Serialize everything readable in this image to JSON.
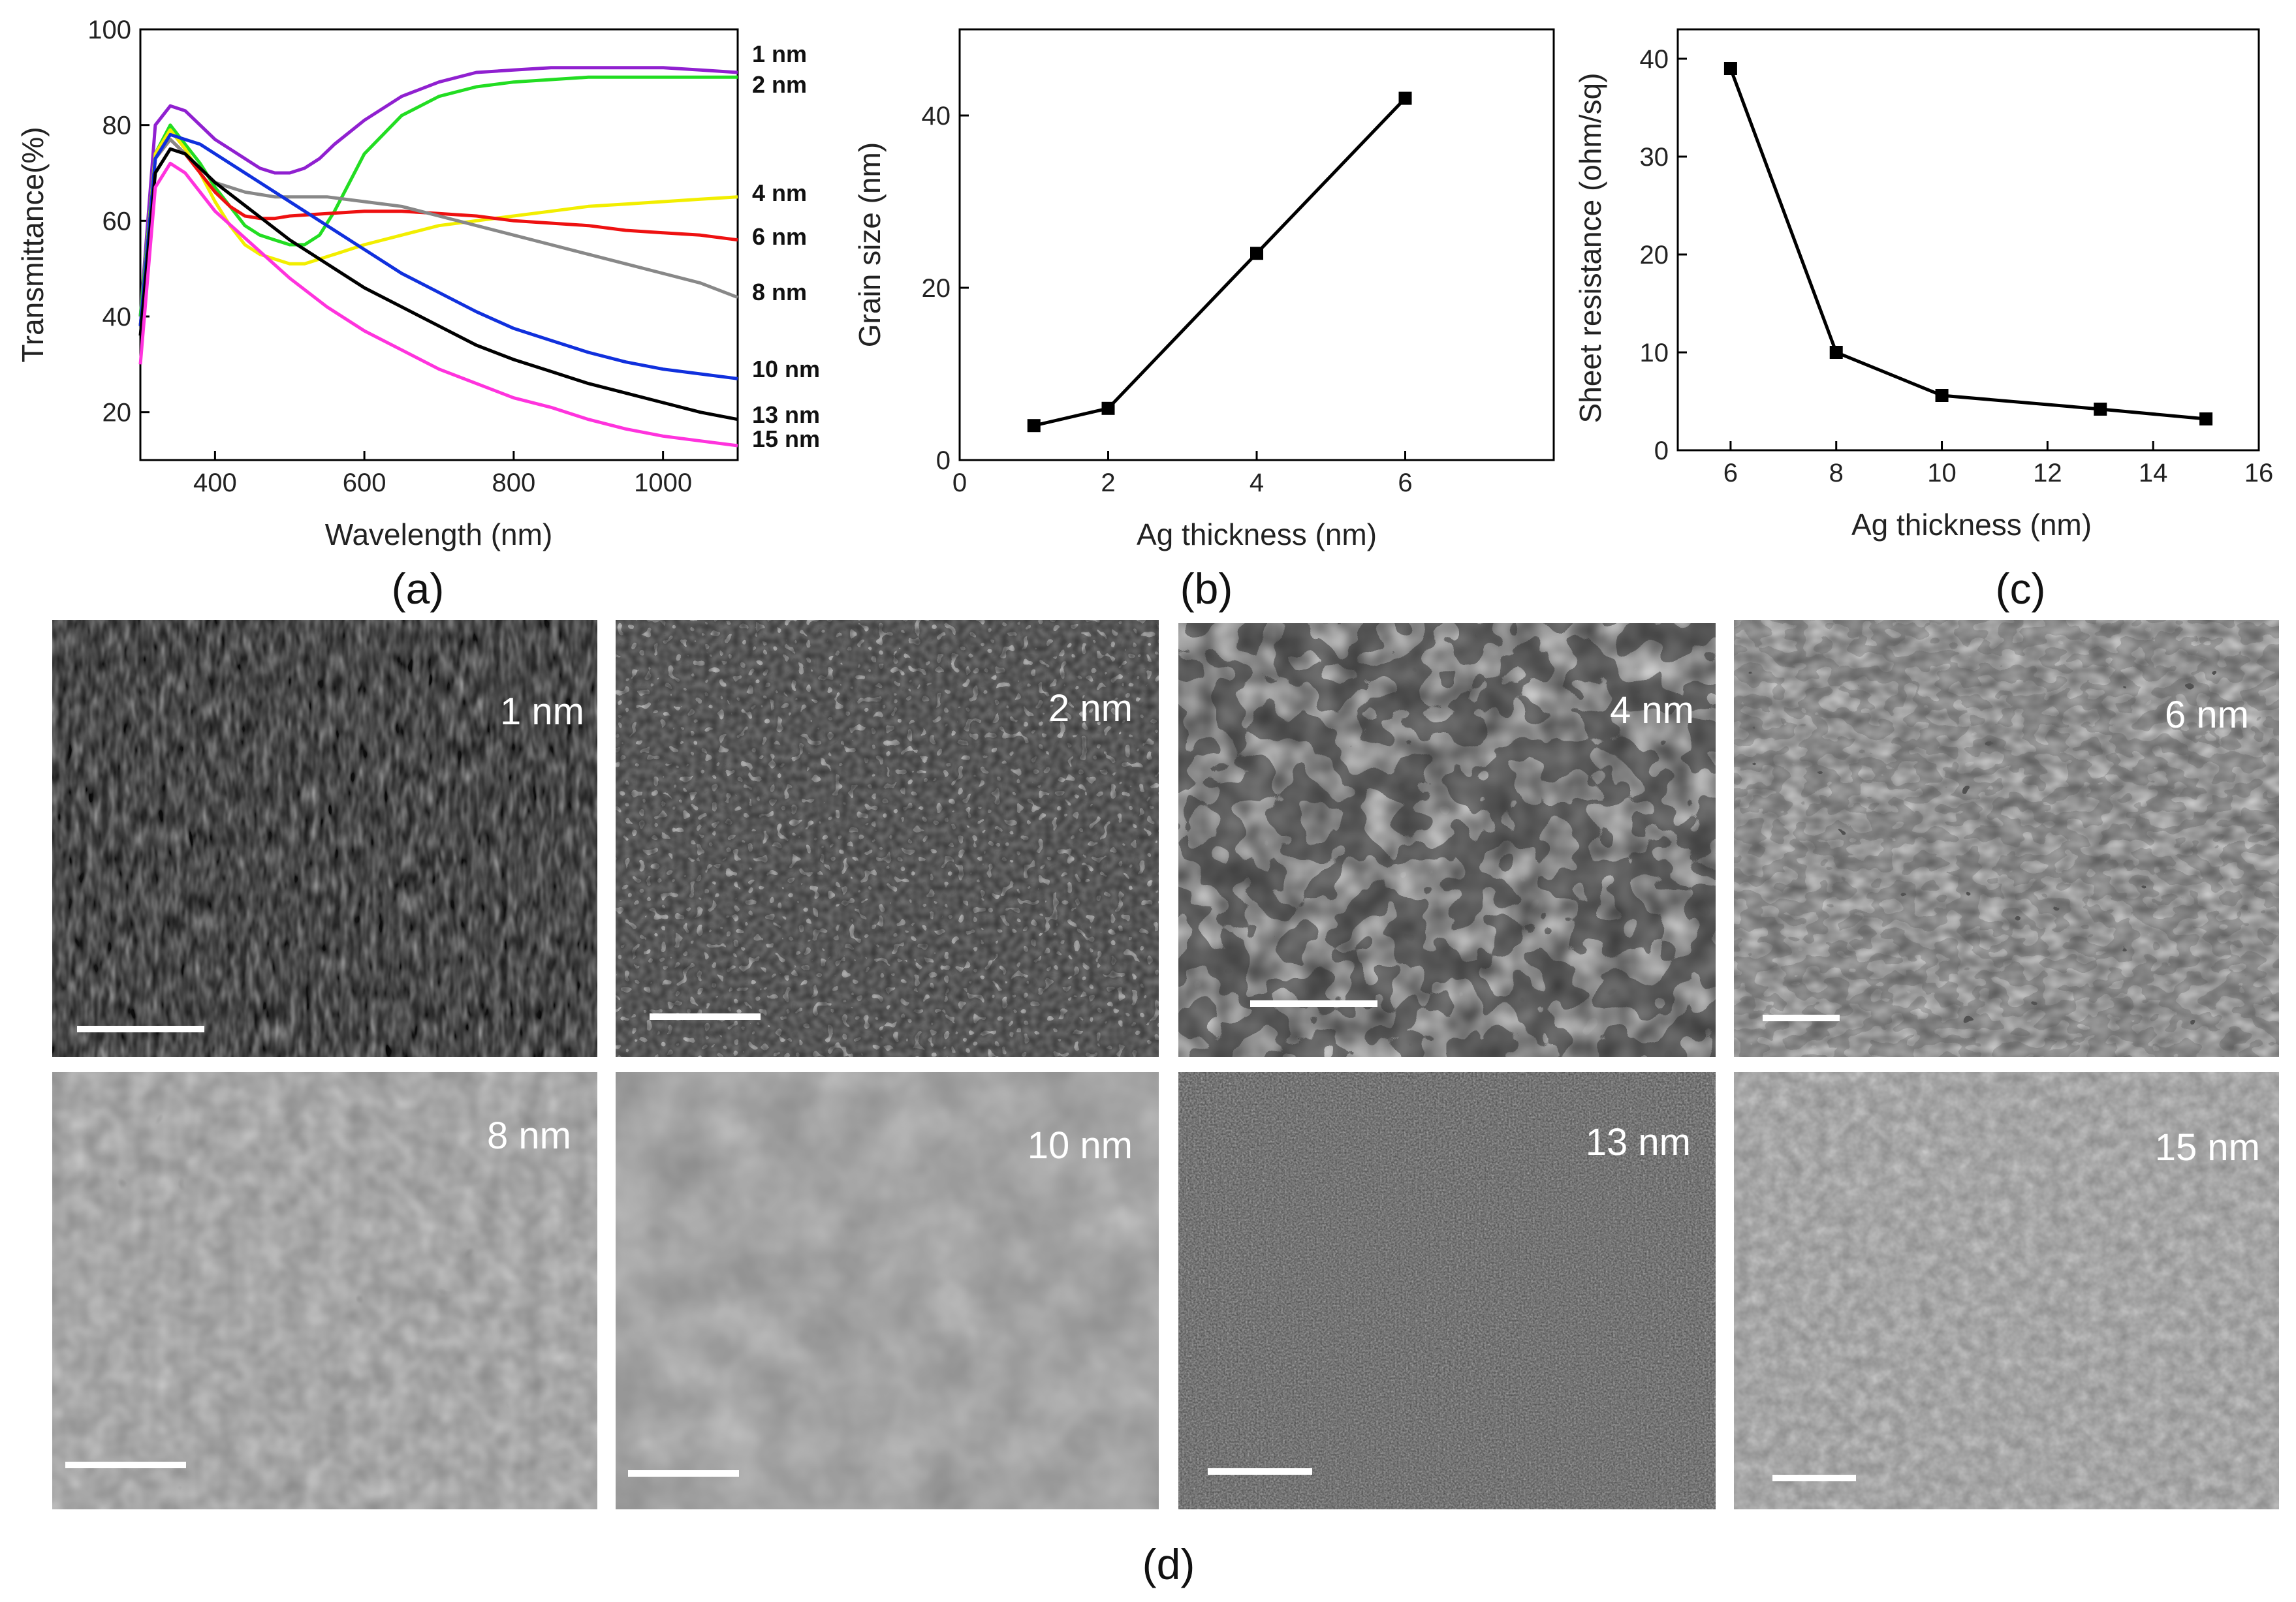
{
  "chart_data": [
    {
      "panel": "(a)",
      "type": "line",
      "xlabel": "Wavelength (nm)",
      "ylabel": "Transmittance(%)",
      "xlim": [
        300,
        1100
      ],
      "ylim": [
        10,
        100
      ],
      "xticks": [
        400,
        600,
        800,
        1000
      ],
      "yticks": [
        20,
        40,
        60,
        80,
        100
      ],
      "legend_position": "right",
      "series": [
        {
          "name": "1 nm",
          "color": "#9020d0",
          "x": [
            300,
            320,
            340,
            360,
            380,
            400,
            420,
            440,
            460,
            480,
            500,
            520,
            540,
            560,
            600,
            650,
            700,
            750,
            800,
            850,
            900,
            950,
            1000,
            1050,
            1100
          ],
          "y": [
            40,
            80,
            84,
            83,
            80,
            77,
            75,
            73,
            71,
            70,
            70,
            71,
            73,
            76,
            81,
            86,
            89,
            91,
            91.5,
            92,
            92,
            92,
            92,
            91.5,
            91
          ]
        },
        {
          "name": "2 nm",
          "color": "#22dd22",
          "x": [
            300,
            320,
            340,
            360,
            380,
            400,
            420,
            440,
            460,
            480,
            500,
            520,
            540,
            560,
            580,
            600,
            650,
            700,
            750,
            800,
            850,
            900,
            950,
            1000,
            1050,
            1100
          ],
          "y": [
            40,
            74,
            80,
            76,
            72,
            67,
            63,
            59,
            57,
            56,
            55,
            55,
            57,
            62,
            68,
            74,
            82,
            86,
            88,
            89,
            89.5,
            90,
            90,
            90,
            90,
            90
          ]
        },
        {
          "name": "4 nm",
          "color": "#f2ee00",
          "x": [
            300,
            320,
            340,
            360,
            380,
            400,
            420,
            440,
            460,
            480,
            500,
            520,
            540,
            560,
            600,
            650,
            700,
            750,
            800,
            850,
            900,
            950,
            1000,
            1050,
            1100
          ],
          "y": [
            38,
            74,
            79,
            75,
            70,
            64,
            59,
            55,
            53,
            52,
            51,
            51,
            52,
            53,
            55,
            57,
            59,
            60,
            61,
            62,
            63,
            63.5,
            64,
            64.5,
            65
          ]
        },
        {
          "name": "6 nm",
          "color": "#ee1111",
          "x": [
            300,
            320,
            340,
            360,
            380,
            400,
            420,
            440,
            460,
            480,
            500,
            550,
            600,
            650,
            700,
            750,
            800,
            850,
            900,
            950,
            1000,
            1050,
            1100
          ],
          "y": [
            38,
            73,
            77,
            74,
            70,
            66,
            63,
            61,
            60.5,
            60.5,
            61,
            61.5,
            62,
            62,
            61.5,
            61,
            60,
            59.5,
            59,
            58,
            57.5,
            57,
            56
          ]
        },
        {
          "name": "8 nm",
          "color": "#888888",
          "x": [
            300,
            320,
            340,
            360,
            380,
            400,
            420,
            440,
            460,
            480,
            500,
            550,
            600,
            650,
            700,
            750,
            800,
            850,
            900,
            950,
            1000,
            1050,
            1100
          ],
          "y": [
            38,
            73,
            77,
            74,
            71,
            68,
            67,
            66,
            65.5,
            65,
            65,
            65,
            64,
            63,
            61,
            59,
            57,
            55,
            53,
            51,
            49,
            47,
            44
          ]
        },
        {
          "name": "10 nm",
          "color": "#1030dd",
          "x": [
            300,
            320,
            340,
            360,
            380,
            400,
            450,
            500,
            550,
            600,
            650,
            700,
            750,
            800,
            850,
            900,
            950,
            1000,
            1050,
            1100
          ],
          "y": [
            38,
            73,
            78,
            77,
            76,
            74,
            69,
            64,
            59,
            54,
            49,
            45,
            41,
            37.5,
            35,
            32.5,
            30.5,
            29,
            28,
            27
          ]
        },
        {
          "name": "13 nm",
          "color": "#000000",
          "x": [
            300,
            320,
            340,
            360,
            380,
            400,
            450,
            500,
            550,
            600,
            650,
            700,
            750,
            800,
            850,
            900,
            950,
            1000,
            1050,
            1100
          ],
          "y": [
            36,
            70,
            75,
            74,
            71,
            68,
            62,
            56,
            51,
            46,
            42,
            38,
            34,
            31,
            28.5,
            26,
            24,
            22,
            20,
            18.5
          ]
        },
        {
          "name": "15 nm",
          "color": "#ff33dd",
          "x": [
            300,
            320,
            340,
            360,
            380,
            400,
            450,
            500,
            550,
            600,
            650,
            700,
            750,
            800,
            850,
            900,
            950,
            1000,
            1050,
            1100
          ],
          "y": [
            30,
            67,
            72,
            70,
            66,
            62,
            55,
            48,
            42,
            37,
            33,
            29,
            26,
            23,
            21,
            18.5,
            16.5,
            15,
            14,
            13
          ]
        }
      ]
    },
    {
      "panel": "(b)",
      "type": "line",
      "xlabel": "Ag thickness (nm)",
      "ylabel": "Grain size (nm)",
      "xlim": [
        0,
        8
      ],
      "ylim": [
        0,
        50
      ],
      "xticks": [
        0,
        2,
        4,
        6
      ],
      "yticks": [
        0,
        20,
        40
      ],
      "series": [
        {
          "x": [
            1,
            2,
            4,
            6
          ],
          "y": [
            4,
            6,
            24,
            42
          ],
          "color": "#000000"
        }
      ]
    },
    {
      "panel": "(c)",
      "type": "line",
      "xlabel": "Ag thickness (nm)",
      "ylabel": "Sheet resistance (ohm/sq)",
      "xlim": [
        5,
        16
      ],
      "ylim": [
        0,
        43
      ],
      "xticks": [
        6,
        8,
        10,
        12,
        14,
        16
      ],
      "yticks": [
        0,
        10,
        20,
        30,
        40
      ],
      "series": [
        {
          "x": [
            6,
            8,
            10,
            13,
            15
          ],
          "y": [
            39,
            10,
            5.6,
            4.2,
            3.2
          ],
          "color": "#000000"
        }
      ]
    }
  ],
  "panel_labels": {
    "a": "(a)",
    "b": "(b)",
    "c": "(c)",
    "d": "(d)"
  },
  "sem_images": [
    {
      "label": "1 nm",
      "tone": "very-dark-fine-speckle"
    },
    {
      "label": "2 nm",
      "tone": "dark-with-small-bright-grains"
    },
    {
      "label": "4 nm",
      "tone": "bright-islands-dark-channels"
    },
    {
      "label": "6 nm",
      "tone": "bright-network-dark-voids"
    },
    {
      "label": "8 nm",
      "tone": "grey-film-black-holes"
    },
    {
      "label": "10 nm",
      "tone": "grey-film-large-grains"
    },
    {
      "label": "13 nm",
      "tone": "dark-grey-noisy-grains"
    },
    {
      "label": "15 nm",
      "tone": "light-grey-fine-grains"
    }
  ]
}
